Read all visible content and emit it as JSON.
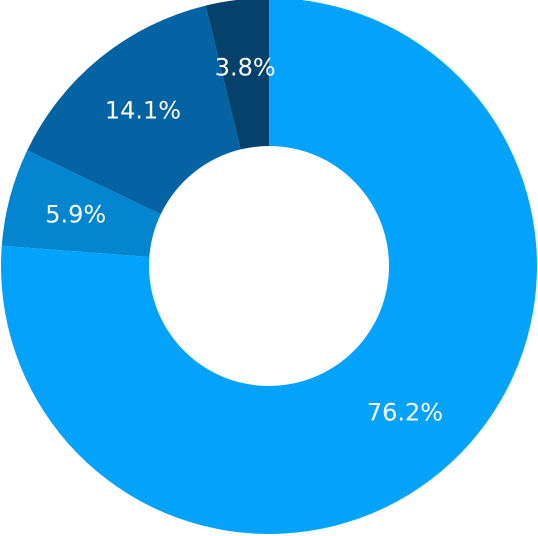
{
  "chart_data": {
    "type": "pie",
    "variant": "donut",
    "title": "",
    "slices": [
      {
        "value": 76.2,
        "label": "76.2%",
        "color": "#03a3fc"
      },
      {
        "value": 5.9,
        "label": "5.9%",
        "color": "#0385d0"
      },
      {
        "value": 14.1,
        "label": "14.1%",
        "color": "#0463a3"
      },
      {
        "value": 3.8,
        "label": "3.8%",
        "color": "#04426b"
      }
    ]
  }
}
